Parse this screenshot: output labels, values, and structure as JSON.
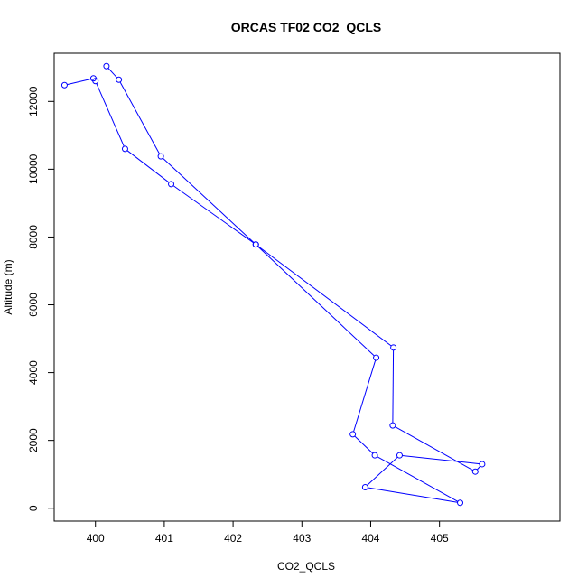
{
  "chart_data": {
    "type": "line",
    "title": "ORCAS TF02 CO2_QCLS",
    "xlabel": "CO2_QCLS",
    "ylabel": "Altitude (m)",
    "xlim": [
      399.4,
      406.75
    ],
    "ylim": [
      -380,
      13420
    ],
    "xticks": [
      400,
      401,
      402,
      403,
      404,
      405
    ],
    "yticks": [
      0,
      2000,
      4000,
      6000,
      8000,
      10000,
      12000
    ],
    "xtick_labels": [
      "400",
      "401",
      "402",
      "403",
      "404",
      "405"
    ],
    "ytick_labels": [
      "0",
      "2000",
      "4000",
      "6000",
      "8000",
      "10000",
      "12000"
    ],
    "grid": false,
    "markers": "open-circle",
    "color": "#0000ff",
    "series": [
      {
        "x": [
          399.55,
          399.97,
          400.0,
          400.43,
          401.1,
          402.33,
          404.08,
          403.74,
          404.06,
          405.3,
          403.92,
          404.42,
          405.62,
          405.52,
          404.32,
          404.33,
          402.33,
          400.95,
          400.34,
          400.16
        ],
        "y": [
          12480,
          12680,
          12600,
          10600,
          9560,
          7780,
          4440,
          2180,
          1560,
          160,
          620,
          1560,
          1300,
          1080,
          2440,
          4740,
          7780,
          10380,
          12640,
          13040
        ]
      }
    ]
  }
}
